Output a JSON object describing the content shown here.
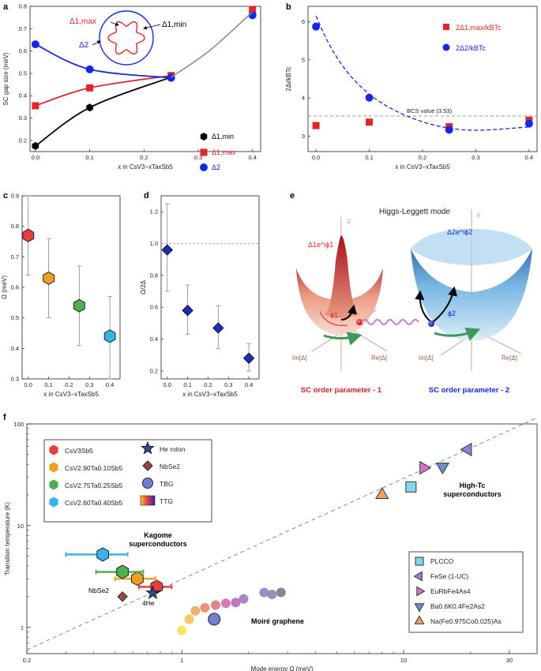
{
  "panels": {
    "a": "a",
    "b": "b",
    "c": "c",
    "d": "d",
    "e": "e",
    "f": "f"
  },
  "colors": {
    "black": "#000000",
    "red": "#e0262b",
    "blue": "#1428e6",
    "darkblue": "#1a2fc0",
    "gray": "#8c8c8c"
  },
  "chart_data": [
    {
      "id": "a",
      "type": "line",
      "xlabel": "x in CsV3−xTaxSb5",
      "ylabel": "SC gap size (meV)",
      "xlim": [
        -0.01,
        0.415
      ],
      "ylim": [
        0.15,
        0.8
      ],
      "xticks": [
        "0.0",
        "0.1",
        "0.2",
        "0.3",
        "0.4"
      ],
      "yticks": [
        "0.2",
        "0.3",
        "0.4",
        "0.5",
        "0.6",
        "0.7",
        "0.8"
      ],
      "x": [
        0,
        0.1,
        0.25,
        0.4
      ],
      "series": [
        {
          "name": "Δ1,min",
          "marker": "hexagon",
          "color": "#000000",
          "values": [
            0.175,
            0.347,
            0.483,
            0.775
          ]
        },
        {
          "name": "Δ1,max",
          "marker": "square",
          "color": "#e0262b",
          "values": [
            0.355,
            0.435,
            0.49,
            0.785
          ]
        },
        {
          "name": "Δ2",
          "marker": "circle",
          "color": "#1428e6",
          "values": [
            0.63,
            0.518,
            0.48,
            0.76
          ]
        }
      ],
      "inset": {
        "delta1max": "Δ1,max",
        "delta1min": "Δ1,min",
        "delta2": "Δ2"
      }
    },
    {
      "id": "b",
      "type": "scatter",
      "xlabel": "x in CsV3−xTaxSb5",
      "ylabel": "2Δi/kBTc",
      "xlim": [
        -0.015,
        0.415
      ],
      "ylim": [
        2.6,
        6.4
      ],
      "xticks": [
        "0.0",
        "0.1",
        "0.2",
        "0.3",
        "0.4"
      ],
      "yticks": [
        "3",
        "4",
        "5",
        "6"
      ],
      "x": [
        0,
        0.1,
        0.25,
        0.4
      ],
      "series": [
        {
          "name": "2Δ1,max/kBTc",
          "marker": "square",
          "color": "#e0262b",
          "values": [
            3.28,
            3.37,
            3.25,
            3.42
          ]
        },
        {
          "name": "2Δ2/kBTc",
          "marker": "circle",
          "color": "#1428e6",
          "values": [
            5.87,
            4.01,
            3.17,
            3.33
          ]
        }
      ],
      "reference": {
        "label": "BCS value (3.53)",
        "value": 3.53
      }
    },
    {
      "id": "c",
      "type": "scatter",
      "xlabel": "x in CsV3−xTaxSb5",
      "ylabel": "Ω (meV)",
      "xlim": [
        -0.03,
        0.45
      ],
      "ylim": [
        0.3,
        0.9
      ],
      "xticks": [
        "0.0",
        "0.1",
        "0.2",
        "0.3",
        "0.4"
      ],
      "yticks": [
        "0.3",
        "0.4",
        "0.5",
        "0.6",
        "0.7",
        "0.8",
        "0.9"
      ],
      "points": [
        {
          "x": 0,
          "y": 0.77,
          "lo": 0.64,
          "hi": 0.9,
          "color": "#e8403a"
        },
        {
          "x": 0.1,
          "y": 0.63,
          "lo": 0.5,
          "hi": 0.76,
          "color": "#f0a020"
        },
        {
          "x": 0.25,
          "y": 0.54,
          "lo": 0.41,
          "hi": 0.67,
          "color": "#4caf50"
        },
        {
          "x": 0.4,
          "y": 0.44,
          "lo": 0.3,
          "hi": 0.57,
          "color": "#35b4e8"
        }
      ]
    },
    {
      "id": "d",
      "type": "scatter",
      "xlabel": "x in CsV3−xTaxSb5",
      "ylabel": "Ω/2Δ",
      "xlim": [
        -0.03,
        0.45
      ],
      "ylim": [
        0.15,
        1.3
      ],
      "xticks": [
        "0.0",
        "0.1",
        "0.2",
        "0.3",
        "0.4"
      ],
      "yticks": [
        "0.2",
        "0.4",
        "0.6",
        "0.8",
        "1.0",
        "1.2"
      ],
      "reference": 1.0,
      "points": [
        {
          "x": 0,
          "y": 0.96,
          "lo": 0.7,
          "hi": 1.25
        },
        {
          "x": 0.1,
          "y": 0.58,
          "lo": 0.43,
          "hi": 0.74
        },
        {
          "x": 0.25,
          "y": 0.47,
          "lo": 0.34,
          "hi": 0.61
        },
        {
          "x": 0.4,
          "y": 0.28,
          "lo": 0.2,
          "hi": 0.37
        }
      ]
    },
    {
      "id": "f",
      "type": "scatter",
      "xscale": "log",
      "yscale": "log",
      "xlabel": "Mode energy Ω (meV)",
      "ylabel": "Transition temperature (K)",
      "xlim": [
        0.2,
        40
      ],
      "ylim": [
        0.55,
        100
      ],
      "xticks": [
        {
          "v": 0.2,
          "t": "0.2"
        },
        {
          "v": 1,
          "t": "1"
        },
        {
          "v": 10,
          "t": "10"
        },
        {
          "v": 30,
          "t": "30"
        }
      ],
      "yticks": [
        {
          "v": 1,
          "t": "1"
        },
        {
          "v": 10,
          "t": "10"
        },
        {
          "v": 100,
          "t": "100"
        }
      ],
      "trend": {
        "x": [
          0.2,
          40
        ],
        "y": [
          0.6,
          115
        ]
      },
      "kagome": [
        {
          "name": "CsV3Sb5",
          "x": 0.77,
          "y": 2.5,
          "xerr": [
            0.64,
            0.9
          ],
          "color": "#e8403a"
        },
        {
          "name": "CsV2.90Ta0.10Sb5",
          "x": 0.63,
          "y": 3.0,
          "xerr": [
            0.5,
            0.76
          ],
          "color": "#f0a020"
        },
        {
          "name": "CsV2.75Ta0.25Sb5",
          "x": 0.54,
          "y": 3.5,
          "xerr": [
            0.41,
            0.67
          ],
          "color": "#4caf50"
        },
        {
          "name": "CsV2.60Ta0.40Sb5",
          "x": 0.44,
          "y": 5.2,
          "xerr": [
            0.3,
            0.57
          ],
          "color": "#35b4e8"
        }
      ],
      "he_roton": {
        "x": 0.74,
        "y": 2.17
      },
      "nbse2": {
        "x": 0.54,
        "y": 2.0
      },
      "tbg": {
        "x": 1.4,
        "y": 1.2
      },
      "ttg": {
        "x": [
          1.0,
          1.08,
          1.15,
          1.27,
          1.42,
          1.58,
          1.75,
          1.9,
          2.35,
          2.55,
          2.8
        ],
        "y": [
          0.93,
          1.2,
          1.45,
          1.55,
          1.65,
          1.72,
          1.75,
          1.9,
          2.2,
          2.1,
          2.2
        ]
      },
      "pnictides": [
        {
          "name": "PLCCO",
          "x": 10.8,
          "y": 24,
          "marker": "square",
          "color": "#7fd8ec"
        },
        {
          "name": "FeSe (1-UC)",
          "x": 19.5,
          "y": 56,
          "marker": "tri-left",
          "color": "#9b7fd4"
        },
        {
          "name": "EuRbFe4As4",
          "x": 12.3,
          "y": 37,
          "marker": "tri-right",
          "color": "#d86fc9"
        },
        {
          "name": "Ba0.6K0.4Fe2As2",
          "x": 15.0,
          "y": 38,
          "marker": "tri-down",
          "color": "#6f8fd0"
        },
        {
          "name": "Na(Fe0.975Co0.025)As",
          "x": 8.0,
          "y": 20,
          "marker": "tri-up",
          "color": "#f0a060"
        }
      ]
    }
  ],
  "panel_a_legend": {
    "min": "Δ1,min",
    "max": "Δ1,max",
    "d2": "Δ2"
  },
  "panel_b_legend": {
    "r": "2Δ1,max/kBTc",
    "b": "2Δ2/kBTc"
  },
  "panel_e": {
    "title": "Higgs-Leggett mode",
    "left_caption": "SC order parameter - 1",
    "right_caption": "SC order parameter - 2",
    "F": "F",
    "im": "Im[Δ]",
    "re": "Re[Δ]",
    "phi1": "ϕ1",
    "phi2": "ϕ2",
    "op1": "Δ1e^iϕ1",
    "op2": "Δ2e^iϕ2"
  },
  "panel_f_text": {
    "kagome_label_1": "Kagome",
    "kagome_label_2": "superconductors",
    "hightc_1": "High-Tc",
    "hightc_2": "superconductors",
    "moire": "Moiré graphene",
    "he4": "4He",
    "nbse2": "NbSe2",
    "legend_left": [
      "CsV3Sb5",
      "CsV2.90Ta0.10Sb5",
      "CsV2.75Ta0.25Sb5",
      "CsV2.60Ta0.40Sb5"
    ],
    "legend_mid": [
      "He roton",
      "NbSe2",
      "TBG",
      "TTG"
    ],
    "legend_right": [
      "PLCCO",
      "FeSe (1-UC)",
      "EuRbFe4As4",
      "Ba0.6K0.4Fe2As2",
      "Na(Fe0.975Co0.025)As"
    ]
  }
}
